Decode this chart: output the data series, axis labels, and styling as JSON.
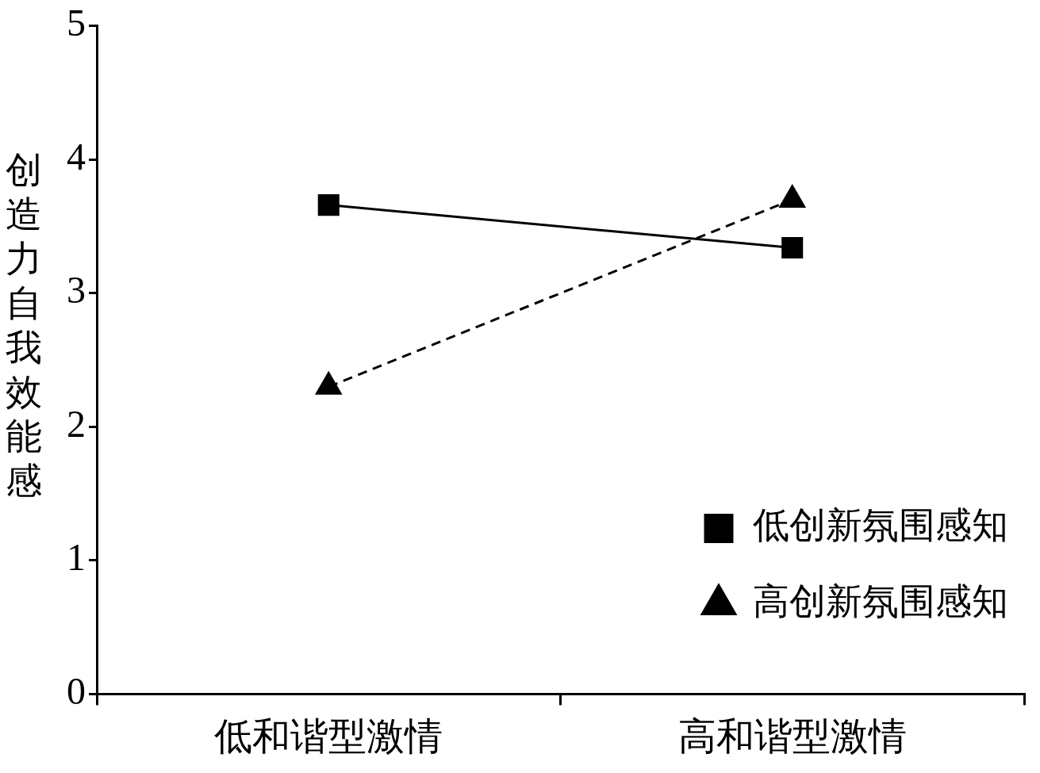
{
  "chart_data": {
    "type": "line",
    "ylabel": "创造力自我效能感",
    "categories": [
      "低和谐型激情",
      "高和谐型激情"
    ],
    "series": [
      {
        "name": "低创新氛围感知",
        "color": "#000000",
        "values": [
          3.66,
          3.34
        ],
        "marker": "square",
        "line_style": "solid"
      },
      {
        "name": "高创新氛围感知",
        "color": "#000000",
        "values": [
          2.3,
          3.7
        ],
        "marker": "triangle",
        "line_style": "dashed"
      }
    ],
    "ylim": [
      0,
      5
    ],
    "yticks": [
      0,
      1,
      2,
      3,
      4,
      5
    ],
    "grid": false,
    "legend": "bottom right"
  }
}
